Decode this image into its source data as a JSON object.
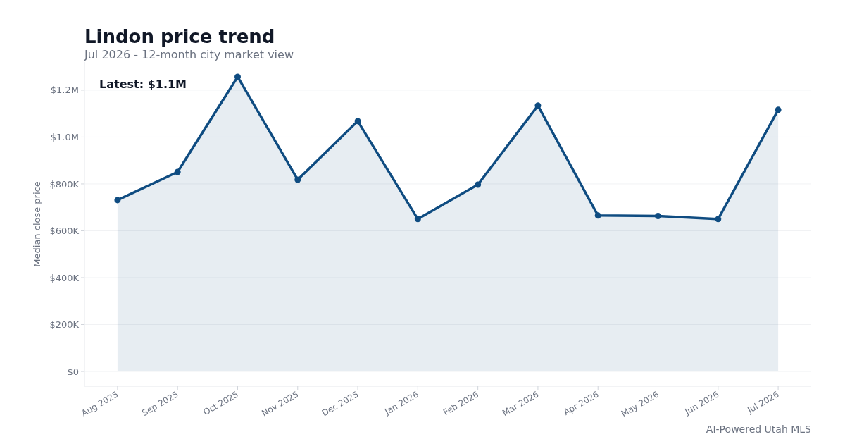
{
  "chart_data": {
    "type": "area",
    "title": "Lindon price trend",
    "subtitle": "Jul 2026 - 12-month city market view",
    "ylabel": "Median close price",
    "annotations": [
      "Latest: $1.1M",
      "AI-Powered Utah MLS"
    ],
    "categories": [
      "Aug 2025",
      "Sep 2025",
      "Oct 2025",
      "Nov 2025",
      "Dec 2025",
      "Jan 2026",
      "Feb 2026",
      "Mar 2026",
      "Apr 2026",
      "May 2026",
      "Jun 2026",
      "Jul 2026"
    ],
    "series": [
      {
        "color": "#0f4c81",
        "values": [
          731000,
          851000,
          1257000,
          818000,
          1068000,
          650000,
          797000,
          1134000,
          665000,
          663000,
          650000,
          1116000
        ]
      }
    ],
    "ylim": [
      -63000,
      1320000
    ],
    "yticks": [
      {
        "value": 0,
        "label": "$0"
      },
      {
        "value": 200000,
        "label": "$200K"
      },
      {
        "value": 400000,
        "label": "$400K"
      },
      {
        "value": 600000,
        "label": "$600K"
      },
      {
        "value": 800000,
        "label": "$800K"
      },
      {
        "value": 1000000,
        "label": "$1.0M"
      },
      {
        "value": 1200000,
        "label": "$1.2M"
      }
    ],
    "grid": "y",
    "marker": "circle",
    "line_style": "solid"
  }
}
